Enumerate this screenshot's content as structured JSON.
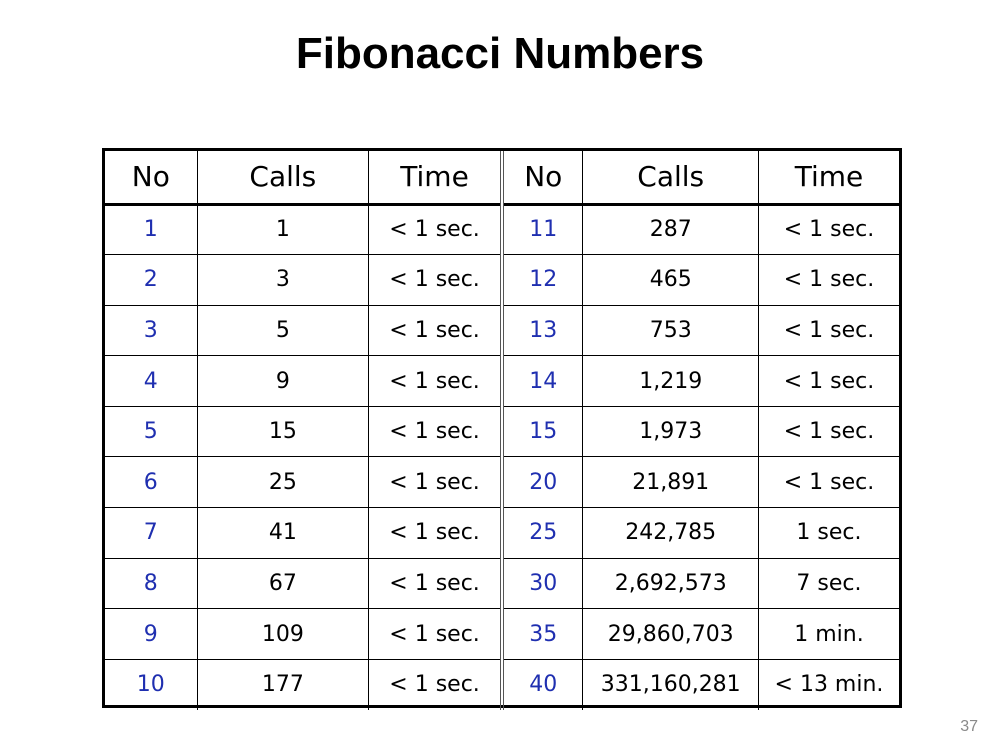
{
  "slide": {
    "title": "Fibonacci Numbers",
    "page_number": "37"
  },
  "table": {
    "headers": [
      "No",
      "Calls",
      "Time",
      "No",
      "Calls",
      "Time"
    ],
    "rows": [
      [
        "1",
        "1",
        "< 1 sec.",
        "11",
        "287",
        "< 1 sec."
      ],
      [
        "2",
        "3",
        "< 1 sec.",
        "12",
        "465",
        "< 1 sec."
      ],
      [
        "3",
        "5",
        "< 1 sec.",
        "13",
        "753",
        "< 1 sec."
      ],
      [
        "4",
        "9",
        "< 1 sec.",
        "14",
        "1,219",
        "< 1 sec."
      ],
      [
        "5",
        "15",
        "< 1 sec.",
        "15",
        "1,973",
        "< 1 sec."
      ],
      [
        "6",
        "25",
        "< 1 sec.",
        "20",
        "21,891",
        "< 1 sec."
      ],
      [
        "7",
        "41",
        "< 1 sec.",
        "25",
        "242,785",
        "1 sec."
      ],
      [
        "8",
        "67",
        "< 1 sec.",
        "30",
        "2,692,573",
        "7 sec."
      ],
      [
        "9",
        "109",
        "< 1 sec.",
        "35",
        "29,860,703",
        "1 min."
      ],
      [
        "10",
        "177",
        "< 1 sec.",
        "40",
        "331,160,281",
        "< 13 min."
      ]
    ]
  },
  "colors": {
    "no_column_text": "#1f2fb0",
    "border": "#000000",
    "page_number_text": "#8a8a8a"
  }
}
